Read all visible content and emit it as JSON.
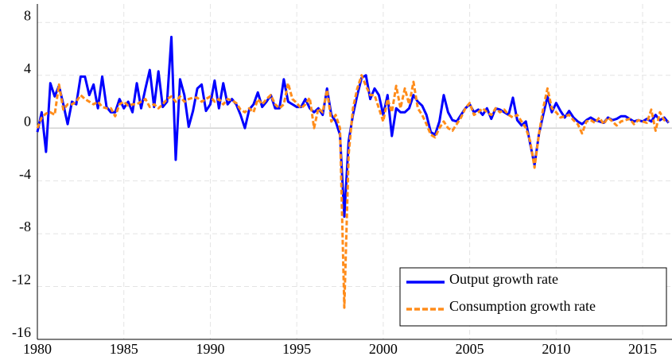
{
  "chart_data": {
    "type": "line",
    "x": [
      1980,
      1980.25,
      1980.5,
      1980.75,
      1981,
      1981.25,
      1981.5,
      1981.75,
      1982,
      1982.25,
      1982.5,
      1982.75,
      1983,
      1983.25,
      1983.5,
      1983.75,
      1984,
      1984.25,
      1984.5,
      1984.75,
      1985,
      1985.25,
      1985.5,
      1985.75,
      1986,
      1986.25,
      1986.5,
      1986.75,
      1987,
      1987.25,
      1987.5,
      1987.75,
      1988,
      1988.25,
      1988.5,
      1988.75,
      1989,
      1989.25,
      1989.5,
      1989.75,
      1990,
      1990.25,
      1990.5,
      1990.75,
      1991,
      1991.25,
      1991.5,
      1991.75,
      1992,
      1992.25,
      1992.5,
      1992.75,
      1993,
      1993.25,
      1993.5,
      1993.75,
      1994,
      1994.25,
      1994.5,
      1994.75,
      1995,
      1995.25,
      1995.5,
      1995.75,
      1996,
      1996.25,
      1996.5,
      1996.75,
      1997,
      1997.25,
      1997.5,
      1997.75,
      1998,
      1998.25,
      1998.5,
      1998.75,
      1999,
      1999.25,
      1999.5,
      1999.75,
      2000,
      2000.25,
      2000.5,
      2000.75,
      2001,
      2001.25,
      2001.5,
      2001.75,
      2002,
      2002.25,
      2002.5,
      2002.75,
      2003,
      2003.25,
      2003.5,
      2003.75,
      2004,
      2004.25,
      2004.5,
      2004.75,
      2005,
      2005.25,
      2005.5,
      2005.75,
      2006,
      2006.25,
      2006.5,
      2006.75,
      2007,
      2007.25,
      2007.5,
      2007.75,
      2008,
      2008.25,
      2008.5,
      2008.75,
      2009,
      2009.25,
      2009.5,
      2009.75,
      2010,
      2010.25,
      2010.5,
      2010.75,
      2011,
      2011.25,
      2011.5,
      2011.75,
      2012,
      2012.25,
      2012.5,
      2012.75,
      2013,
      2013.25,
      2013.5,
      2013.75,
      2014,
      2014.25,
      2014.5,
      2014.75,
      2015,
      2015.25,
      2015.5,
      2015.75,
      2016,
      2016.25,
      2016.5
    ],
    "series": [
      {
        "name": "Output growth rate",
        "color": "#0000ff",
        "dash": "solid",
        "values": [
          -0.3,
          1.2,
          -1.8,
          3.4,
          2.4,
          3.2,
          1.8,
          0.3,
          2.0,
          1.8,
          3.9,
          3.9,
          2.5,
          3.3,
          1.5,
          3.9,
          1.6,
          1.2,
          1.2,
          2.2,
          1.5,
          2.0,
          1.2,
          3.4,
          1.5,
          3.0,
          4.4,
          1.6,
          4.3,
          1.6,
          2.0,
          6.9,
          -2.4,
          3.7,
          2.5,
          0.1,
          1.3,
          3.0,
          3.3,
          1.3,
          1.8,
          3.6,
          1.5,
          3.4,
          1.8,
          2.2,
          1.8,
          1.0,
          0.0,
          1.4,
          1.8,
          2.7,
          1.6,
          2.0,
          2.5,
          1.5,
          1.5,
          3.7,
          2.0,
          1.8,
          1.6,
          1.6,
          2.2,
          1.5,
          1.2,
          1.5,
          1.0,
          3.0,
          1.0,
          0.5,
          -0.5,
          -6.7,
          -1.0,
          1.0,
          2.5,
          3.8,
          4.0,
          2.2,
          3.0,
          2.5,
          1.0,
          2.5,
          -0.6,
          1.5,
          1.2,
          1.2,
          1.5,
          2.5,
          2.0,
          1.7,
          1.0,
          -0.3,
          -0.5,
          0.5,
          2.5,
          1.2,
          0.6,
          0.5,
          1.0,
          1.5,
          1.8,
          1.2,
          1.4,
          1.0,
          1.5,
          0.7,
          1.5,
          1.4,
          1.2,
          1.0,
          2.3,
          0.6,
          0.2,
          0.5,
          -1.2,
          -2.8,
          -0.5,
          1.0,
          2.4,
          1.2,
          1.9,
          1.3,
          0.8,
          1.3,
          0.8,
          0.5,
          0.3,
          0.6,
          0.8,
          0.6,
          0.5,
          0.4,
          0.8,
          0.6,
          0.7,
          0.9,
          0.9,
          0.7,
          0.5,
          0.6,
          0.5,
          0.7,
          0.5,
          1.0,
          0.6,
          0.8,
          0.4
        ]
      },
      {
        "name": "Consumption growth rate",
        "color": "#ff8c1a",
        "dash": "dashed",
        "values": [
          0.0,
          0.8,
          1.1,
          1.2,
          1.0,
          3.3,
          1.4,
          1.8,
          1.8,
          2.0,
          2.5,
          2.2,
          2.0,
          1.8,
          2.0,
          1.6,
          1.5,
          1.5,
          0.9,
          1.8,
          2.0,
          1.7,
          1.8,
          1.8,
          2.0,
          2.2,
          1.6,
          1.8,
          1.5,
          1.8,
          2.2,
          2.4,
          2.0,
          2.4,
          2.0,
          2.2,
          2.3,
          2.3,
          2.0,
          2.2,
          2.4,
          2.0,
          2.2,
          1.8,
          2.2,
          2.1,
          1.9,
          1.4,
          1.2,
          1.5,
          1.2,
          2.2,
          1.8,
          2.2,
          2.5,
          1.8,
          1.5,
          1.8,
          3.4,
          2.2,
          1.9,
          1.5,
          1.8,
          2.3,
          0.0,
          1.5,
          1.2,
          2.9,
          0.5,
          1.0,
          0.0,
          -13.6,
          -2.0,
          1.5,
          3.0,
          4.0,
          3.2,
          2.5,
          2.5,
          1.5,
          0.5,
          2.2,
          1.2,
          3.2,
          1.5,
          3.0,
          1.8,
          3.5,
          1.5,
          1.0,
          0.3,
          -0.5,
          -0.7,
          0.0,
          0.5,
          0.0,
          -0.2,
          0.3,
          0.8,
          1.5,
          1.9,
          1.0,
          1.2,
          1.5,
          1.2,
          1.0,
          1.5,
          1.2,
          1.4,
          1.0,
          0.8,
          1.0,
          0.5,
          0.0,
          -1.0,
          -3.0,
          -0.5,
          1.5,
          3.0,
          1.5,
          1.2,
          0.8,
          0.9,
          1.0,
          0.6,
          0.3,
          -0.4,
          0.5,
          0.6,
          0.4,
          0.8,
          0.3,
          0.8,
          0.5,
          0.2,
          0.5,
          0.6,
          0.7,
          0.3,
          0.6,
          0.5,
          0.4,
          1.4,
          -0.2,
          1.2,
          0.6,
          0.5
        ]
      }
    ],
    "xlim": [
      1980,
      2016.7
    ],
    "xticks": [
      1980,
      1985,
      1990,
      1995,
      2000,
      2005,
      2010,
      2015
    ],
    "ylim": [
      -16,
      9.4
    ],
    "yticks": [
      -16,
      -12,
      -8,
      -4,
      0,
      4,
      8
    ],
    "grid": true,
    "legend": "lower-right"
  }
}
